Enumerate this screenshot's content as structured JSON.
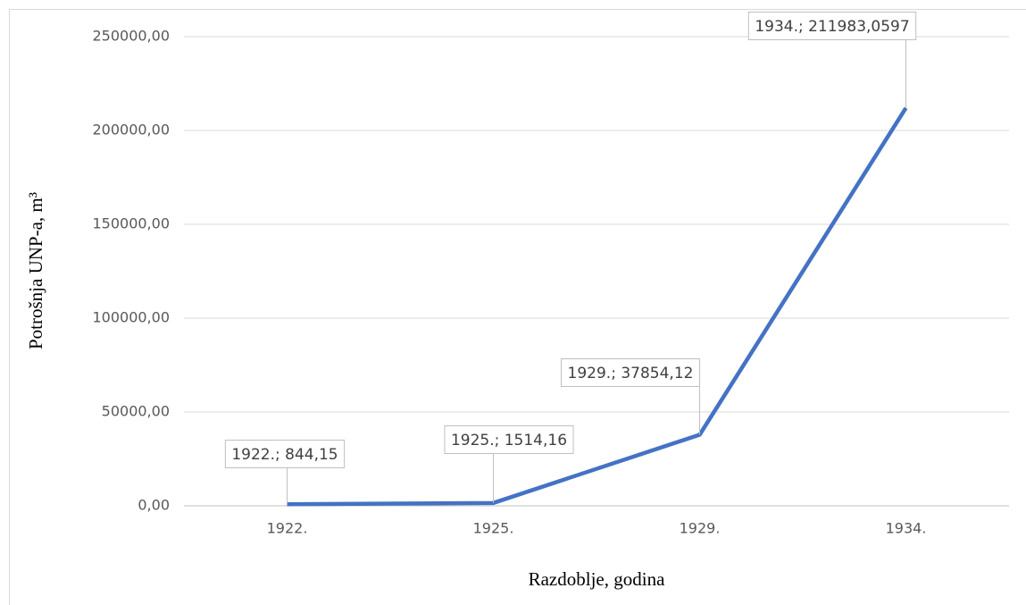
{
  "chart_data": {
    "type": "line",
    "categories": [
      "1922.",
      "1925.",
      "1929.",
      "1934."
    ],
    "values": [
      844.15,
      1514.16,
      37854.12,
      211983.0597
    ],
    "value_labels": [
      "1922.; 844,15",
      "1925.; 1514,16",
      "1929.; 37854,12",
      "1934.; 211983,0597"
    ],
    "color": "#4472c4",
    "ylim": [
      0,
      250000
    ],
    "yticks": [
      {
        "value": 0,
        "label": "0,00"
      },
      {
        "value": 50000,
        "label": "50000,00"
      },
      {
        "value": 100000,
        "label": "100000,00"
      },
      {
        "value": 150000,
        "label": "150000,00"
      },
      {
        "value": 200000,
        "label": "200000,00"
      },
      {
        "value": 250000,
        "label": "250000,00"
      }
    ],
    "grid": true,
    "xlabel": "Razdoblje, godina",
    "ylabel": "Potrošnja UNP-a, m³"
  }
}
